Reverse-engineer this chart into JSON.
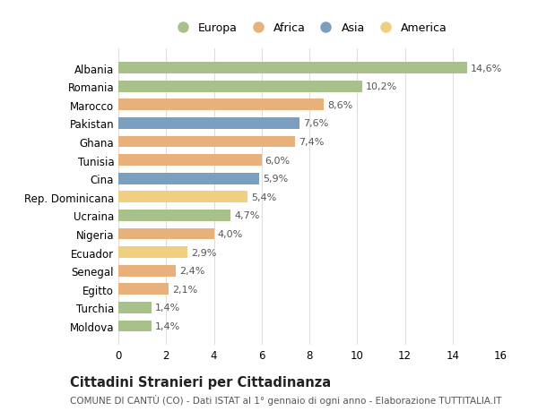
{
  "categories": [
    "Albania",
    "Romania",
    "Marocco",
    "Pakistan",
    "Ghana",
    "Tunisia",
    "Cina",
    "Rep. Dominicana",
    "Ucraina",
    "Nigeria",
    "Ecuador",
    "Senegal",
    "Egitto",
    "Turchia",
    "Moldova"
  ],
  "values": [
    14.6,
    10.2,
    8.6,
    7.6,
    7.4,
    6.0,
    5.9,
    5.4,
    4.7,
    4.0,
    2.9,
    2.4,
    2.1,
    1.4,
    1.4
  ],
  "labels": [
    "14,6%",
    "10,2%",
    "8,6%",
    "7,6%",
    "7,4%",
    "6,0%",
    "5,9%",
    "5,4%",
    "4,7%",
    "4,0%",
    "2,9%",
    "2,4%",
    "2,1%",
    "1,4%",
    "1,4%"
  ],
  "continents": [
    "Europa",
    "Europa",
    "Africa",
    "Asia",
    "Africa",
    "Africa",
    "Asia",
    "America",
    "Europa",
    "Africa",
    "America",
    "Africa",
    "Africa",
    "Europa",
    "Europa"
  ],
  "colors": {
    "Europa": "#a8c08a",
    "Africa": "#e8b07a",
    "Asia": "#7b9fc0",
    "America": "#f0d080"
  },
  "legend_order": [
    "Europa",
    "Africa",
    "Asia",
    "America"
  ],
  "xlim": [
    0,
    16
  ],
  "xticks": [
    0,
    2,
    4,
    6,
    8,
    10,
    12,
    14,
    16
  ],
  "title1": "Cittadini Stranieri per Cittadinanza",
  "title2": "COMUNE DI CANTÙ (CO) - Dati ISTAT al 1° gennaio di ogni anno - Elaborazione TUTTITALIA.IT",
  "bg_color": "#ffffff",
  "grid_color": "#dddddd",
  "bar_height": 0.62,
  "label_fontsize": 8.0,
  "tick_fontsize": 8.5,
  "title1_fontsize": 10.5,
  "title2_fontsize": 7.5
}
